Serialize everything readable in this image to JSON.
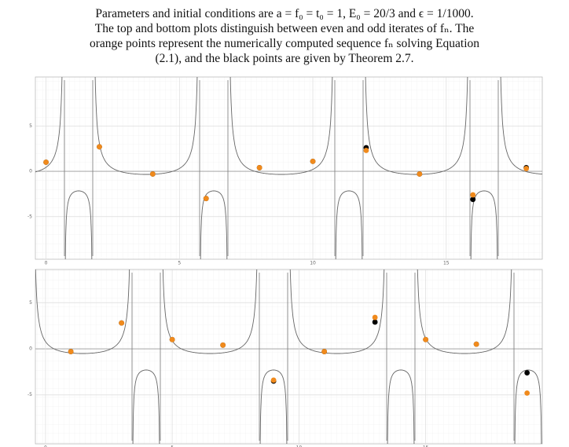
{
  "caption": [
    "Parameters and initial conditions are a = f₀ = t₀ = 1, E₀ = 20/3 and ϵ = 1/1000.",
    "The top and bottom plots distinguish between even and odd iterates of fₙ. The",
    "orange points represent the numerically computed sequence fₙ solving Equation",
    "(2.1), and the black points are given by Theorem 2.7."
  ],
  "chart_data": [
    {
      "type": "scatter",
      "x": [
        0,
        2,
        4,
        6,
        8,
        10,
        12,
        14,
        16,
        18
      ],
      "series": [
        {
          "color": "#000000",
          "values": [
            1.0,
            2.7,
            -0.3,
            -3.0,
            0.4,
            1.1,
            2.6,
            -0.3,
            -3.1,
            0.4
          ]
        },
        {
          "color": "#f08a1c",
          "values": [
            1.0,
            2.7,
            -0.3,
            -3.0,
            0.4,
            1.1,
            2.3,
            -0.3,
            -2.6,
            0.3
          ]
        }
      ],
      "xlim": [
        -0.4,
        18.6
      ],
      "ylim": [
        -9.7,
        10.4
      ],
      "xticks": [
        0,
        5,
        10,
        15
      ],
      "yticks": [
        -5,
        0,
        5
      ],
      "grid": true
    },
    {
      "type": "scatter",
      "x": [
        1,
        3,
        5,
        7,
        9,
        11,
        13,
        15,
        17,
        19
      ],
      "series": [
        {
          "color": "#000000",
          "values": [
            -0.3,
            2.8,
            1.0,
            0.4,
            -3.5,
            -0.3,
            2.9,
            1.0,
            0.5,
            -2.6
          ]
        },
        {
          "color": "#f08a1c",
          "values": [
            -0.3,
            2.8,
            1.0,
            0.4,
            -3.4,
            -0.3,
            3.4,
            1.0,
            0.5,
            -4.8
          ]
        }
      ],
      "xlim": [
        -0.4,
        19.6
      ],
      "ylim": [
        -10.3,
        8.6
      ],
      "xticks": [
        0,
        5,
        10,
        15
      ],
      "yticks": [
        -5,
        0,
        5
      ],
      "grid": true
    }
  ]
}
